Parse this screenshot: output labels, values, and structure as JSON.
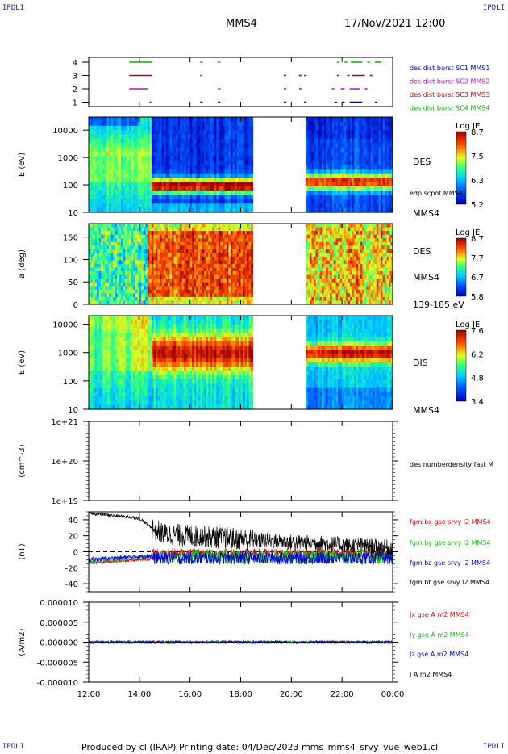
{
  "corner_labels": {
    "top_left": "IPDLI",
    "top_right": "IPDLI",
    "bottom_left": "IPDLI",
    "bottom_right": "IPDLI"
  },
  "header": {
    "spacecraft": "MMS4",
    "datetime": "17/Nov/2021 12:00"
  },
  "footer": "Produced by cl (IRAP)   Printing date: 04/Dec/2023   mms_mms4_srvy_vue_web1.cl",
  "colors": {
    "black": "#000000",
    "red": "#e00000",
    "green": "#10c010",
    "blue": "#0000e0",
    "magenta": "#d000d0"
  },
  "chart_data": [
    {
      "type": "timeline",
      "yticks": [
        "1",
        "2",
        "3",
        "4"
      ],
      "legend": [
        {
          "label": "des dist burst SC1 MMS1",
          "color": "#0000c0"
        },
        {
          "label": "des dist burst SC2 MMS2",
          "color": "#d000d0"
        },
        {
          "label": "des dist burst SC3 MMS3",
          "color": "#c00000"
        },
        {
          "label": "des dist burst SC4 MMS4",
          "color": "#00b000"
        }
      ],
      "intervals": [
        {
          "row": 4,
          "start": 13.6,
          "end": 14.5
        },
        {
          "row": 4,
          "start": 16.4,
          "end": 16.5
        },
        {
          "row": 4,
          "start": 17.1,
          "end": 17.2
        },
        {
          "row": 4,
          "start": 21.8,
          "end": 21.9
        },
        {
          "row": 4,
          "start": 22.1,
          "end": 22.2
        },
        {
          "row": 4,
          "start": 22.35,
          "end": 22.8
        },
        {
          "row": 4,
          "start": 23.0,
          "end": 23.1
        },
        {
          "row": 4,
          "start": 23.3,
          "end": 23.55
        },
        {
          "row": 3,
          "start": 13.6,
          "end": 14.5
        },
        {
          "row": 3,
          "start": 16.4,
          "end": 16.45
        },
        {
          "row": 3,
          "start": 19.7,
          "end": 19.8
        },
        {
          "row": 3,
          "start": 20.3,
          "end": 20.4
        },
        {
          "row": 3,
          "start": 20.5,
          "end": 20.6
        },
        {
          "row": 3,
          "start": 21.8,
          "end": 21.9
        },
        {
          "row": 3,
          "start": 22.2,
          "end": 22.3
        },
        {
          "row": 3,
          "start": 22.4,
          "end": 22.9
        },
        {
          "row": 3,
          "start": 23.1,
          "end": 23.2
        },
        {
          "row": 2,
          "start": 13.6,
          "end": 14.35
        },
        {
          "row": 2,
          "start": 17.1,
          "end": 17.2
        },
        {
          "row": 2,
          "start": 19.7,
          "end": 19.8
        },
        {
          "row": 2,
          "start": 20.3,
          "end": 20.4
        },
        {
          "row": 2,
          "start": 21.6,
          "end": 21.7
        },
        {
          "row": 2,
          "start": 21.95,
          "end": 22.1
        },
        {
          "row": 2,
          "start": 22.3,
          "end": 22.7
        },
        {
          "row": 2,
          "start": 22.9,
          "end": 23.0
        },
        {
          "row": 1,
          "start": 14.4,
          "end": 14.45
        },
        {
          "row": 1,
          "start": 16.4,
          "end": 16.5
        },
        {
          "row": 1,
          "start": 17.1,
          "end": 17.2
        },
        {
          "row": 1,
          "start": 19.7,
          "end": 19.8
        },
        {
          "row": 1,
          "start": 20.5,
          "end": 20.6
        },
        {
          "row": 1,
          "start": 21.7,
          "end": 21.8
        },
        {
          "row": 1,
          "start": 22.0,
          "end": 22.1
        },
        {
          "row": 1,
          "start": 22.3,
          "end": 22.8
        },
        {
          "row": 1,
          "start": 23.3,
          "end": 23.4
        }
      ]
    },
    {
      "type": "heatmap",
      "ylabel": "E (eV)",
      "yscale": "log",
      "yrange": [
        10,
        30000
      ],
      "yticks": [
        "10000",
        "1000",
        "100",
        "10"
      ],
      "right_labels": [
        "DES",
        "edp scpot MMS4",
        "MMS4"
      ],
      "colorbar": {
        "title": "Log JE",
        "ticks": [
          "8.7",
          "7.5",
          "6.3",
          "5.2"
        ]
      },
      "data_gaps": [
        [
          18.5,
          20.6
        ]
      ]
    },
    {
      "type": "heatmap",
      "ylabel": "a (deg)",
      "yrange": [
        0,
        180
      ],
      "yticks": [
        "150",
        "100",
        "50",
        "0"
      ],
      "right_labels": [
        "DES",
        "MMS4",
        "139-185 eV"
      ],
      "colorbar": {
        "title": "Log JE",
        "ticks": [
          "8.7",
          "7.7",
          "6.7",
          "5.8"
        ]
      },
      "data_gaps": [
        [
          18.5,
          20.6
        ]
      ]
    },
    {
      "type": "heatmap",
      "ylabel": "E (eV)",
      "yscale": "log",
      "yrange": [
        10,
        20000
      ],
      "yticks": [
        "10000",
        "1000",
        "100",
        "10"
      ],
      "right_labels": [
        "DIS",
        "MMS4"
      ],
      "colorbar": {
        "title": "Log JE",
        "ticks": [
          "7.6",
          "6.2",
          "4.8",
          "3.4"
        ]
      },
      "data_gaps": [
        [
          18.5,
          20.6
        ]
      ]
    },
    {
      "type": "line",
      "ylabel": "(cm^-3)",
      "yscale": "log",
      "yrange": [
        1e+19,
        1e+21
      ],
      "yticks": [
        "1e+21",
        "1e+20",
        "1e+19"
      ],
      "series": [
        {
          "name": "des numberdensity fast M",
          "color": "#000000"
        }
      ]
    },
    {
      "type": "line",
      "ylabel": "(nT)",
      "yrange": [
        -50,
        50
      ],
      "yticks": [
        "40",
        "20",
        "0",
        "-20",
        "-40"
      ],
      "series": [
        {
          "name": "fgm bx gse srvy l2 MMS4",
          "color": "#e00000"
        },
        {
          "name": "fgm by gse srvy l2 MMS4",
          "color": "#10c010"
        },
        {
          "name": "fgm bz gse srvy l2 MMS4",
          "color": "#0000e0"
        },
        {
          "name": "fgm bt gse srvy l2 MMS4",
          "color": "#000000",
          "x": [
            12.0,
            12.5,
            13.0,
            13.5,
            14.0,
            14.5,
            15.0,
            16.0,
            17.0,
            18.0,
            18.5,
            19.0,
            20.0,
            21.0,
            22.0,
            23.0,
            24.0
          ],
          "y": [
            48,
            47,
            45,
            44,
            42,
            30,
            22,
            20,
            18,
            16,
            15,
            14,
            12,
            11,
            9,
            7,
            5
          ]
        }
      ]
    },
    {
      "type": "line",
      "ylabel": "(A/m2)",
      "yrange": [
        -1e-05,
        1e-05
      ],
      "yticks": [
        "0.000010",
        "0.000005",
        "0.000000",
        "-0.000005",
        "-0.000010"
      ],
      "xticks": [
        "12:00",
        "14:00",
        "16:00",
        "18:00",
        "20:00",
        "22:00",
        "00:00"
      ],
      "series": [
        {
          "name": "Jx gse A m2 MMS4",
          "color": "#e00000"
        },
        {
          "name": "Jy gse A m2 MMS4",
          "color": "#10c010"
        },
        {
          "name": "Jz gse A m2 MMS4",
          "color": "#0000e0"
        },
        {
          "name": "J A m2 MMS4",
          "color": "#000000"
        }
      ]
    }
  ]
}
